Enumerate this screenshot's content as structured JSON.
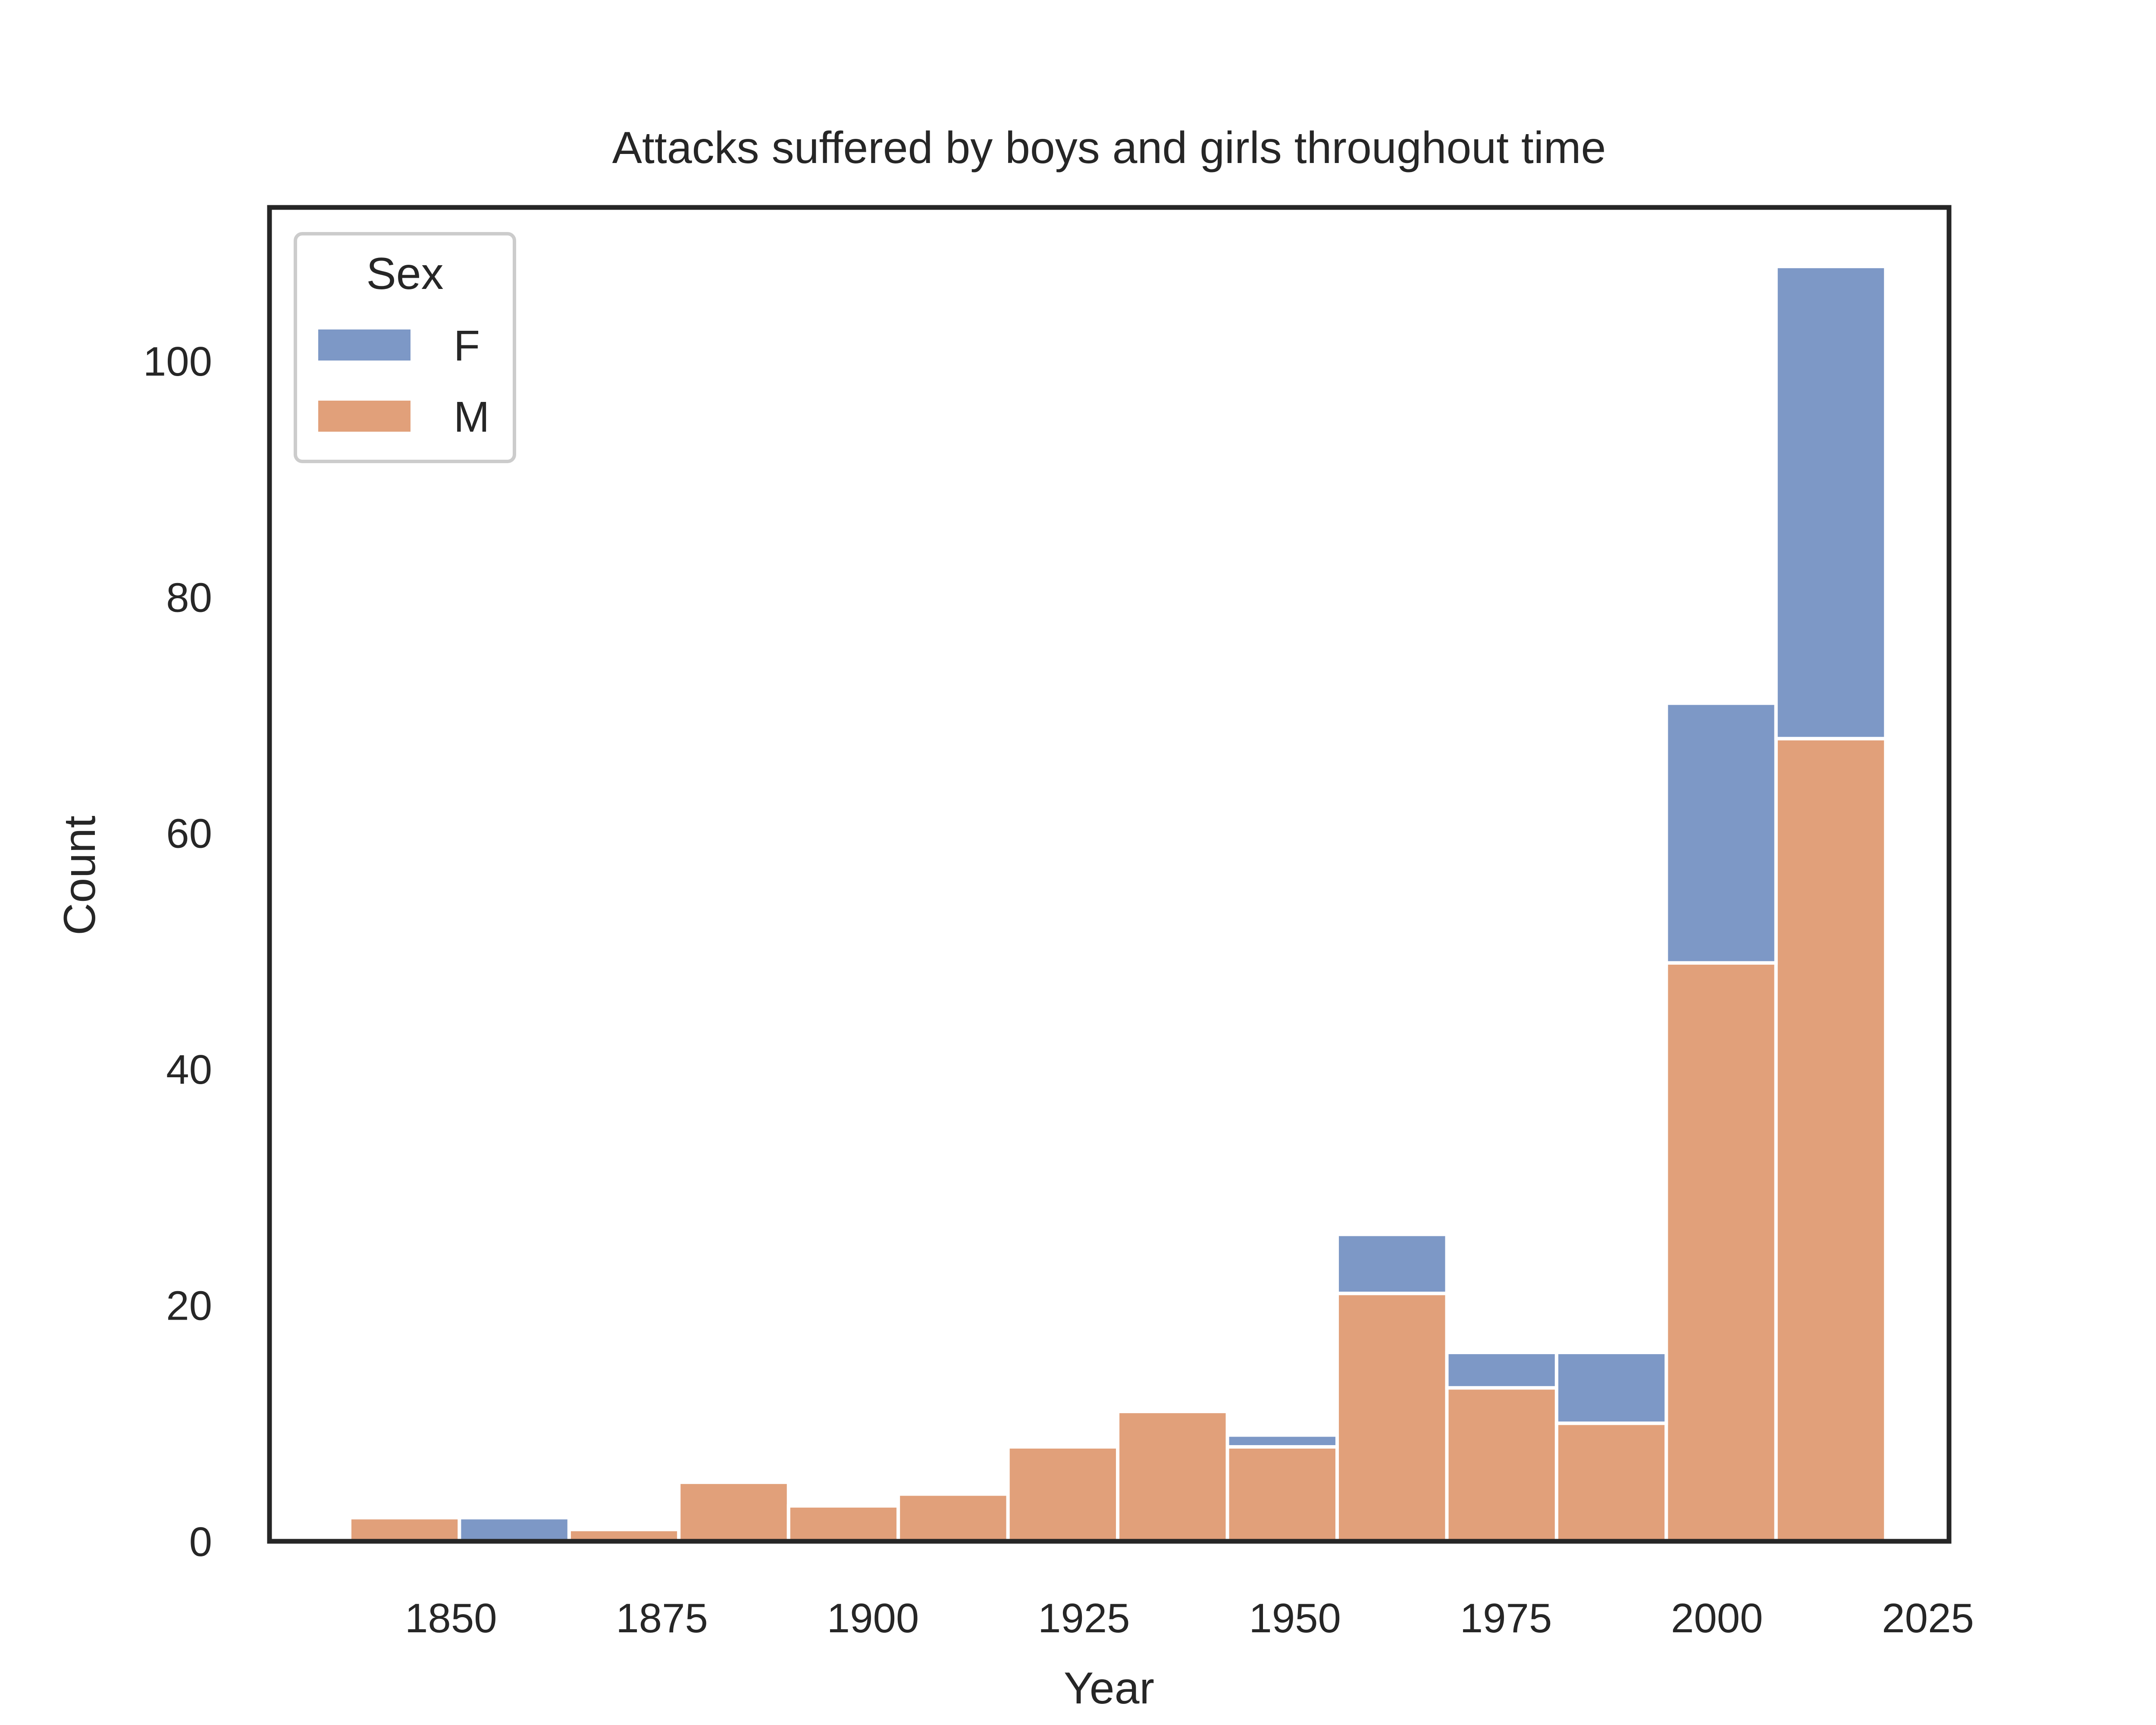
{
  "chart_data": {
    "type": "bar",
    "stacked": true,
    "title": "Attacks suffered by boys and girls throughout time",
    "xlabel": "Year",
    "ylabel": "Count",
    "xlim": [
      1828.5,
      2027.5
    ],
    "ylim": [
      0,
      113
    ],
    "x_ticks": [
      1850,
      1875,
      1900,
      1925,
      1950,
      1975,
      2000,
      2025
    ],
    "y_ticks": [
      0,
      20,
      40,
      60,
      80,
      100
    ],
    "bin_edges": [
      1838,
      1851,
      1864,
      1877,
      1890,
      1903,
      1916,
      1929,
      1942,
      1955,
      1968,
      1981,
      1994,
      2007,
      2020
    ],
    "grid": false,
    "legend": {
      "title": "Sex",
      "position": "top-left"
    },
    "series": [
      {
        "name": "M",
        "color": "#e1a07a",
        "values": [
          2,
          0,
          1,
          5,
          3,
          4,
          8,
          11,
          8,
          21,
          13,
          10,
          49,
          68
        ]
      },
      {
        "name": "F",
        "color": "#7d98c6",
        "values": [
          0,
          2,
          0,
          0,
          0,
          0,
          0,
          0,
          1,
          5,
          3,
          6,
          22,
          40
        ]
      }
    ]
  }
}
